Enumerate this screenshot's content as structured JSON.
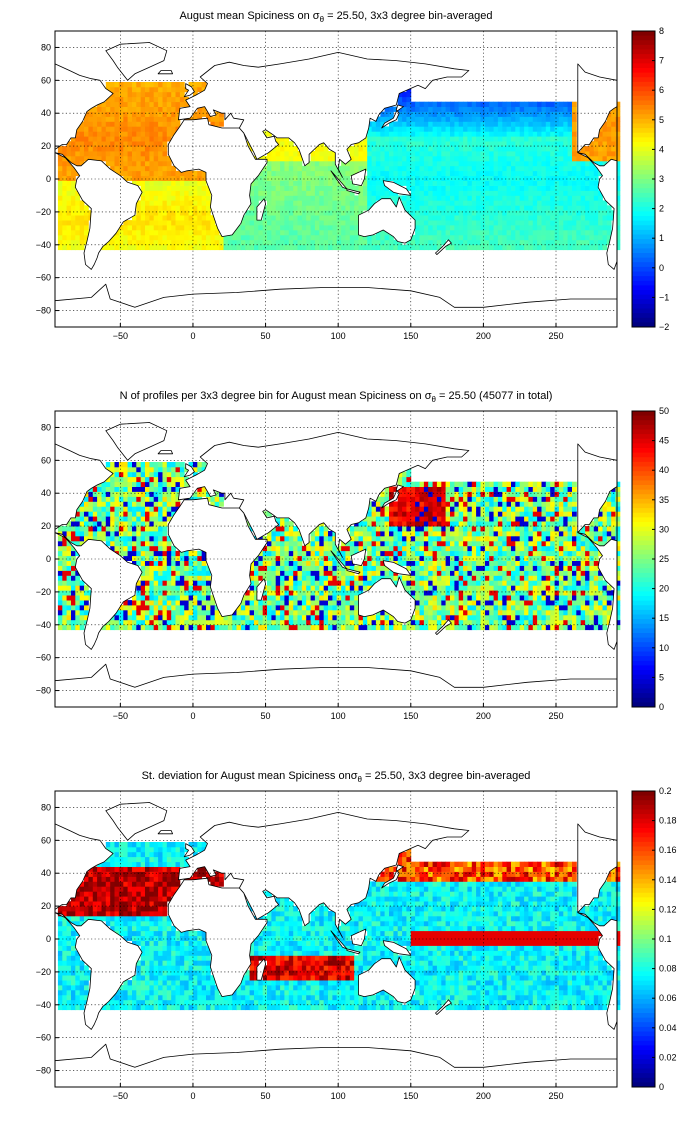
{
  "chart_data": [
    {
      "type": "heatmap",
      "title_parts": [
        "August mean Spiciness on ",
        "σ",
        "θ",
        " = 25.50, 3x3 degree bin-averaged"
      ],
      "xlabel": "",
      "ylabel": "",
      "xlim": [
        -95,
        292
      ],
      "ylim": [
        -90,
        90
      ],
      "xticks": [
        -50,
        0,
        50,
        100,
        150,
        200,
        250
      ],
      "yticks": [
        80,
        60,
        40,
        20,
        0,
        -20,
        -40,
        -60,
        -80
      ],
      "grid": true,
      "colorbar": {
        "colormap": "jet",
        "range": [
          -2,
          8
        ],
        "ticks": [
          8,
          7,
          6,
          5,
          4,
          3,
          2,
          1,
          0,
          -1,
          -2
        ]
      },
      "field": "spiciness"
    },
    {
      "type": "heatmap",
      "title_parts": [
        "N of profiles per 3x3 degree bin for August mean Spiciness on ",
        "σ",
        "θ",
        " = 25.50 (45077 in total)"
      ],
      "xlabel": "",
      "ylabel": "",
      "xlim": [
        -95,
        292
      ],
      "ylim": [
        -90,
        90
      ],
      "xticks": [
        -50,
        0,
        50,
        100,
        150,
        200,
        250
      ],
      "yticks": [
        80,
        60,
        40,
        20,
        0,
        -20,
        -40,
        -60,
        -80
      ],
      "grid": true,
      "colorbar": {
        "colormap": "jet",
        "range": [
          0,
          50
        ],
        "ticks": [
          50,
          45,
          40,
          35,
          30,
          25,
          20,
          15,
          10,
          5,
          0
        ]
      },
      "field": "count"
    },
    {
      "type": "heatmap",
      "title_parts": [
        "St. deviation for August mean Spiciness on",
        "σ",
        "θ",
        " = 25.50, 3x3 degree bin-averaged"
      ],
      "xlabel": "",
      "ylabel": "",
      "xlim": [
        -95,
        292
      ],
      "ylim": [
        -90,
        90
      ],
      "xticks": [
        -50,
        0,
        50,
        100,
        150,
        200,
        250
      ],
      "yticks": [
        80,
        60,
        40,
        20,
        0,
        -20,
        -40,
        -60,
        -80
      ],
      "grid": true,
      "colorbar": {
        "colormap": "jet",
        "range": [
          0,
          0.2
        ],
        "ticks": [
          0.2,
          0.18,
          0.16,
          0.14,
          0.12,
          0.1,
          0.08,
          0.06,
          0.04,
          0.02,
          0
        ]
      },
      "field": "stdev"
    }
  ]
}
